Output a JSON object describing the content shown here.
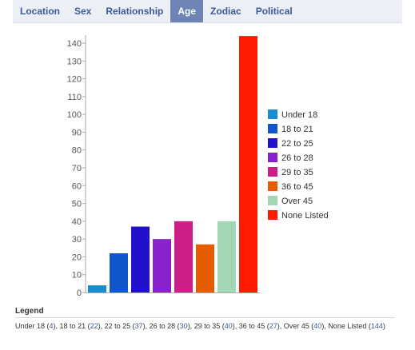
{
  "tabs": [
    {
      "label": "Location",
      "active": false
    },
    {
      "label": "Sex",
      "active": false
    },
    {
      "label": "Relationship",
      "active": false
    },
    {
      "label": "Age",
      "active": true
    },
    {
      "label": "Zodiac",
      "active": false
    },
    {
      "label": "Political",
      "active": false
    }
  ],
  "chart_data": {
    "type": "bar",
    "categories": [
      "Under 18",
      "18 to 21",
      "22 to 25",
      "26 to 28",
      "29 to 35",
      "36 to 45",
      "Over 45",
      "None Listed"
    ],
    "values": [
      4,
      22,
      37,
      30,
      40,
      27,
      40,
      144
    ],
    "colors": [
      "#1a8dd0",
      "#1155cc",
      "#2211cc",
      "#8a22cc",
      "#cc1e88",
      "#e65c00",
      "#a3d6b5",
      "#ff1a00"
    ],
    "ylim": [
      0,
      145
    ],
    "yticks": [
      0,
      10,
      20,
      30,
      40,
      50,
      60,
      70,
      80,
      90,
      100,
      110,
      120,
      130,
      140
    ],
    "legend_placement": "right"
  },
  "legend": {
    "title": "Legend",
    "items": [
      {
        "label": "Under 18",
        "count": "4"
      },
      {
        "label": "18 to 21",
        "count": "22"
      },
      {
        "label": "22 to 25",
        "count": "37"
      },
      {
        "label": "26 to 28",
        "count": "30"
      },
      {
        "label": "29 to 35",
        "count": "40"
      },
      {
        "label": "36 to 45",
        "count": "27"
      },
      {
        "label": "Over 45",
        "count": "40"
      },
      {
        "label": "None Listed",
        "count": "144"
      }
    ]
  }
}
